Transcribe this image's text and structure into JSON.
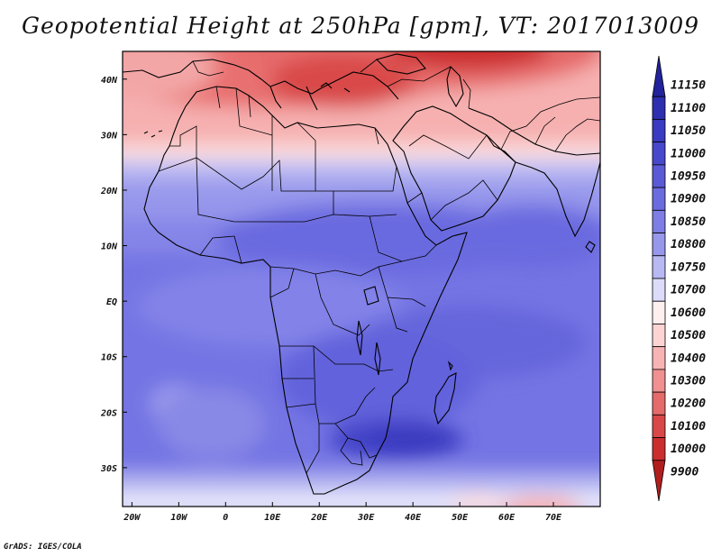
{
  "title": "Geopotential Height at 250hPa [gpm], VT: 2017013009",
  "credit": "GrADS: IGES/COLA",
  "map": {
    "lon_range": [
      -22,
      80
    ],
    "lat_range": [
      -37,
      45
    ],
    "lat_ticks": [
      {
        "value": 40,
        "label": "40N"
      },
      {
        "value": 30,
        "label": "30N"
      },
      {
        "value": 20,
        "label": "20N"
      },
      {
        "value": 10,
        "label": "10N"
      },
      {
        "value": 0,
        "label": "EQ"
      },
      {
        "value": -10,
        "label": "10S"
      },
      {
        "value": -20,
        "label": "20S"
      },
      {
        "value": -30,
        "label": "30S"
      }
    ],
    "lon_ticks": [
      {
        "value": -20,
        "label": "20W"
      },
      {
        "value": -10,
        "label": "10W"
      },
      {
        "value": 0,
        "label": "0"
      },
      {
        "value": 10,
        "label": "10E"
      },
      {
        "value": 20,
        "label": "20E"
      },
      {
        "value": 30,
        "label": "30E"
      },
      {
        "value": 40,
        "label": "40E"
      },
      {
        "value": 50,
        "label": "50E"
      },
      {
        "value": 60,
        "label": "60E"
      },
      {
        "value": 70,
        "label": "70E"
      }
    ]
  },
  "colorbar": {
    "levels": [
      "11150",
      "11100",
      "11050",
      "11000",
      "10950",
      "10900",
      "10850",
      "10800",
      "10750",
      "10700",
      "10600",
      "10500",
      "10400",
      "10300",
      "10200",
      "10100",
      "10000",
      "9900"
    ],
    "colors": [
      "#23239b",
      "#2e2eb0",
      "#3a3ac2",
      "#4848cc",
      "#5a5ad6",
      "#6b6be0",
      "#7d7de5",
      "#9797ec",
      "#b8b8f3",
      "#dcdcfa",
      "#fff0f0",
      "#fcd4d4",
      "#f8b4b4",
      "#f09090",
      "#e56a6a",
      "#d94848",
      "#cc2e2e",
      "#b01e1e"
    ]
  }
}
